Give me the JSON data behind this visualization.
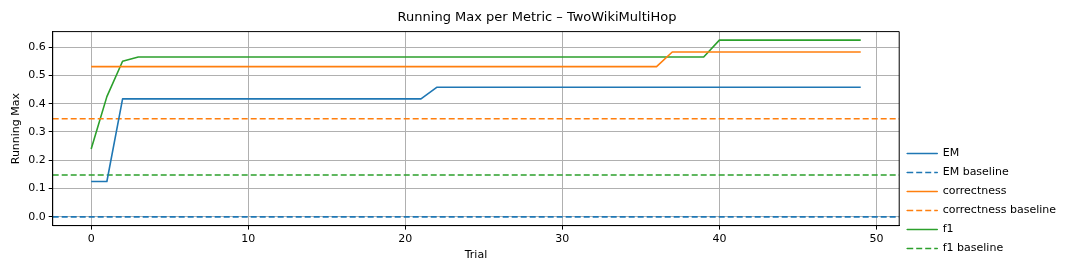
{
  "chart_data": {
    "type": "line",
    "title": "Running Max per Metric – TwoWikiMultiHop",
    "xlabel": "Trial",
    "ylabel": "Running Max",
    "xlim": [
      -2.45,
      51.45
    ],
    "xticks": [
      0,
      10,
      20,
      30,
      40,
      50
    ],
    "ylim": [
      -0.031,
      0.655
    ],
    "yticks": [
      {
        "value": 0,
        "label": "0.0"
      },
      0.1,
      0.2,
      0.3,
      0.4,
      0.5,
      0.6
    ],
    "grid": true,
    "legend": "right",
    "marker": "none",
    "series": [
      {
        "name": "EM",
        "color": "#1f77b4",
        "x": [
          0,
          1,
          2,
          21,
          22,
          49
        ],
        "values": [
          0.125,
          0.125,
          0.417,
          0.417,
          0.458,
          0.458
        ],
        "line_style": "solid"
      },
      {
        "name": "EM baseline",
        "color": "#1f77b4",
        "x": [
          -2.45,
          51.45
        ],
        "values": [
          0,
          0
        ],
        "line_style": "dashed"
      },
      {
        "name": "correctness",
        "color": "#ff7f0e",
        "x": [
          0,
          36,
          37,
          49
        ],
        "values": [
          0.531,
          0.531,
          0.583,
          0.583
        ],
        "line_style": "solid"
      },
      {
        "name": "correctness baseline",
        "color": "#ff7f0e",
        "x": [
          -2.45,
          51.45
        ],
        "values": [
          0.347,
          0.347
        ],
        "line_style": "dashed"
      },
      {
        "name": "f1",
        "color": "#2ca02c",
        "x": [
          0,
          1,
          2,
          3,
          39,
          40,
          49
        ],
        "values": [
          0.24,
          0.425,
          0.55,
          0.565,
          0.565,
          0.625,
          0.625
        ],
        "line_style": "solid"
      },
      {
        "name": "f1 baseline",
        "color": "#2ca02c",
        "x": [
          -2.45,
          51.45
        ],
        "values": [
          0.148,
          0.148
        ],
        "line_style": "dashed"
      }
    ]
  }
}
